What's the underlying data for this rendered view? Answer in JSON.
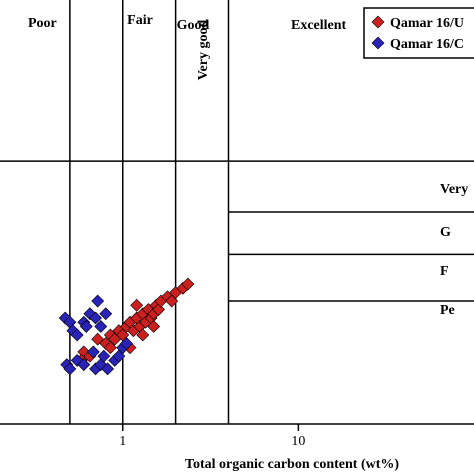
{
  "chart_data": {
    "type": "scatter",
    "xscale": "log",
    "xlim": [
      0.2,
      100
    ],
    "ylim": [
      0,
      1
    ],
    "xlabel": "Total organic carbon content (wt%)",
    "ylabel": "",
    "x_ticks": [
      {
        "value": 1,
        "label": "1"
      },
      {
        "value": 10,
        "label": "10"
      }
    ],
    "toc_zones": [
      {
        "label": "Poor"
      },
      {
        "label": "Fair"
      },
      {
        "label": "Good"
      },
      {
        "label": "Very good"
      },
      {
        "label": "Excellent"
      }
    ],
    "toc_boundaries": [
      0.5,
      1,
      2,
      4
    ],
    "right_zones": [
      {
        "label": "Very"
      },
      {
        "label": "G"
      },
      {
        "label": "F"
      },
      {
        "label": "Pe"
      }
    ],
    "right_boundaries": [
      0.62,
      0.5,
      0.4,
      0.29
    ],
    "legend": {
      "placement": "top-right"
    },
    "series": [
      {
        "name": "Qamar 16/U",
        "color": "#cc1f1f",
        "marker": "diamond",
        "points": [
          [
            0.6,
            0.17
          ],
          [
            0.65,
            0.16
          ],
          [
            0.72,
            0.2
          ],
          [
            0.8,
            0.19
          ],
          [
            0.85,
            0.21
          ],
          [
            0.9,
            0.2
          ],
          [
            0.95,
            0.22
          ],
          [
            1.0,
            0.21
          ],
          [
            1.05,
            0.23
          ],
          [
            1.1,
            0.24
          ],
          [
            1.15,
            0.22
          ],
          [
            1.2,
            0.25
          ],
          [
            1.25,
            0.23
          ],
          [
            1.3,
            0.26
          ],
          [
            1.35,
            0.24
          ],
          [
            1.4,
            0.27
          ],
          [
            1.45,
            0.25
          ],
          [
            1.5,
            0.26
          ],
          [
            1.55,
            0.28
          ],
          [
            1.6,
            0.27
          ],
          [
            1.65,
            0.29
          ],
          [
            1.8,
            0.3
          ],
          [
            2.0,
            0.31
          ],
          [
            2.2,
            0.32
          ],
          [
            2.35,
            0.33
          ],
          [
            1.9,
            0.29
          ],
          [
            1.3,
            0.21
          ],
          [
            1.1,
            0.18
          ],
          [
            0.85,
            0.18
          ],
          [
            0.58,
            0.15
          ],
          [
            1.2,
            0.28
          ],
          [
            1.5,
            0.23
          ]
        ]
      },
      {
        "name": "Qamar 16/C",
        "color": "#2a23b8",
        "marker": "diamond",
        "points": [
          [
            0.47,
            0.25
          ],
          [
            0.5,
            0.24
          ],
          [
            0.52,
            0.22
          ],
          [
            0.55,
            0.21
          ],
          [
            0.6,
            0.24
          ],
          [
            0.65,
            0.26
          ],
          [
            0.7,
            0.25
          ],
          [
            0.75,
            0.23
          ],
          [
            0.8,
            0.26
          ],
          [
            0.72,
            0.29
          ],
          [
            0.62,
            0.23
          ],
          [
            0.48,
            0.14
          ],
          [
            0.5,
            0.13
          ],
          [
            0.55,
            0.15
          ],
          [
            0.6,
            0.14
          ],
          [
            0.7,
            0.13
          ],
          [
            0.75,
            0.14
          ],
          [
            0.82,
            0.13
          ],
          [
            0.9,
            0.15
          ],
          [
            0.95,
            0.16
          ],
          [
            1.0,
            0.18
          ],
          [
            1.05,
            0.19
          ],
          [
            0.68,
            0.17
          ],
          [
            0.78,
            0.16
          ]
        ]
      }
    ]
  }
}
